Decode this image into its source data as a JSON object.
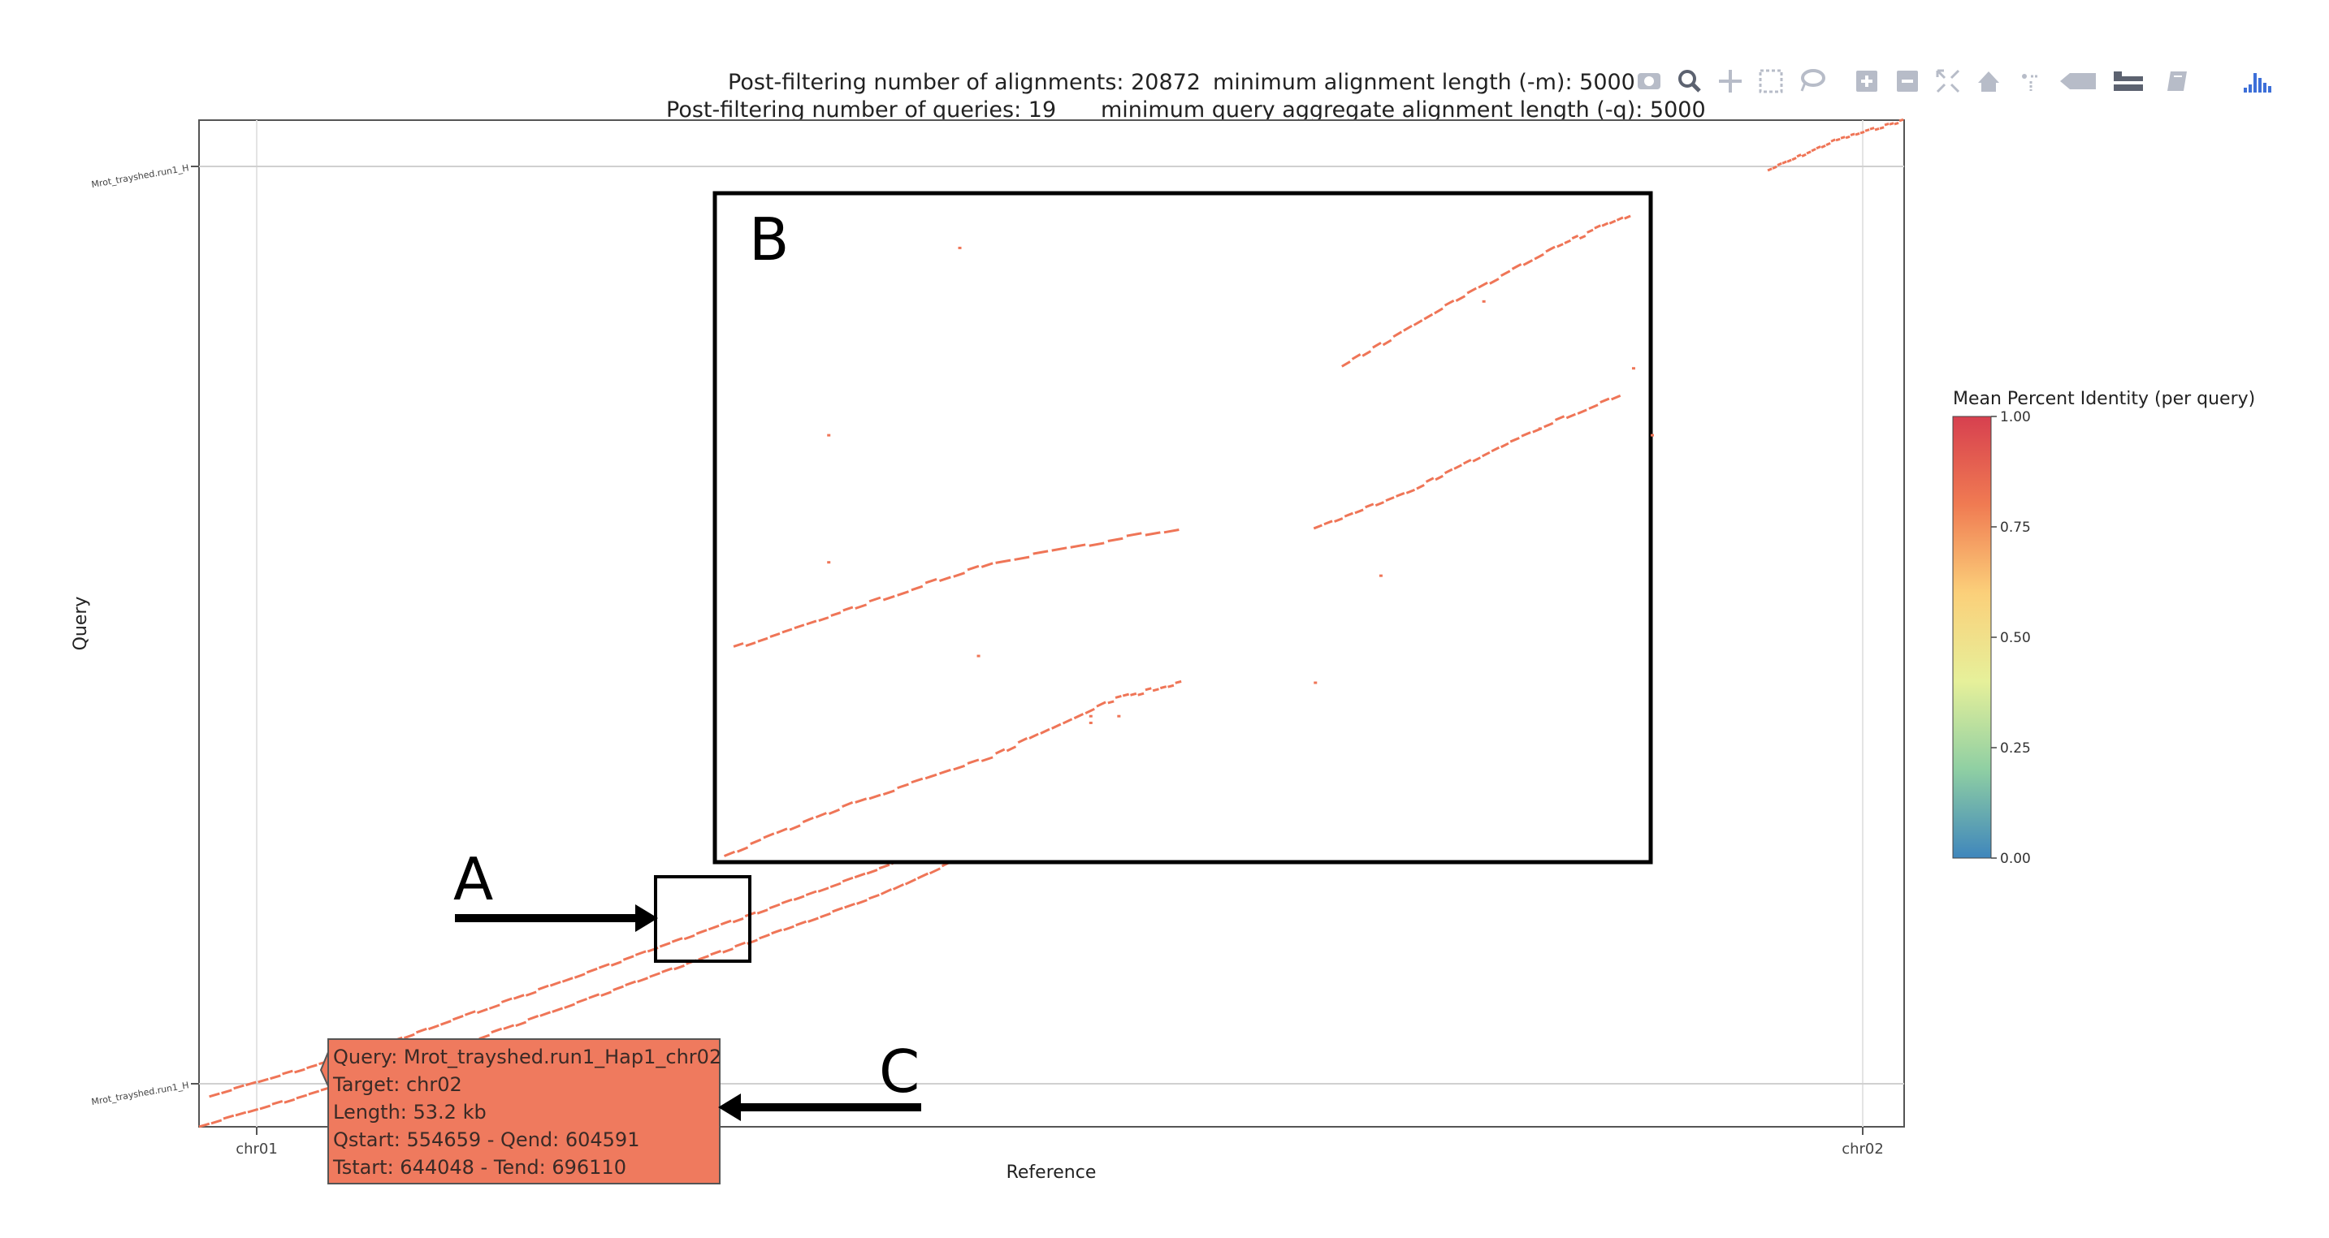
{
  "header": {
    "line1_left": "Post-filtering number of alignments: 20872",
    "line1_right": "minimum alignment length (-m): 5000",
    "line2_left": "Post-filtering number of queries: 19",
    "line2_right": "minimum query aggregate alignment length (-q): 5000"
  },
  "modebar": [
    {
      "name": "camera-icon"
    },
    {
      "name": "zoom-icon"
    },
    {
      "name": "pan-icon"
    },
    {
      "name": "box-select-icon"
    },
    {
      "name": "lasso-select-icon"
    },
    {
      "name": "zoom-in-icon"
    },
    {
      "name": "zoom-out-icon"
    },
    {
      "name": "autoscale-icon"
    },
    {
      "name": "reset-axes-icon"
    },
    {
      "name": "spike-lines-icon"
    },
    {
      "name": "hover-closest-icon"
    },
    {
      "name": "hover-compare-icon"
    },
    {
      "name": "edit-chart-icon"
    },
    {
      "name": "plotly-logo-icon"
    }
  ],
  "chart_data": {
    "type": "scatter",
    "xlabel": "Reference",
    "ylabel": "Query",
    "x_ticks": [
      "chr01",
      "chr02"
    ],
    "y_ticks": [
      "Mrot_trayshed.run1_H",
      "Mrot_trayshed.run1_H"
    ],
    "grid": true,
    "colorbar": {
      "title": "Mean Percent Identity (per query)",
      "ticks": [
        "1.00",
        "0.75",
        "0.50",
        "0.25",
        "0.00"
      ],
      "colors": [
        "#d7404f",
        "#f07b52",
        "#fbd07a",
        "#e6f09a",
        "#8fcfa3",
        "#3f86bc"
      ]
    },
    "line_color": "#ef7557",
    "series_main": [
      [
        0.0,
        0.0
      ],
      [
        0.1,
        0.05
      ],
      [
        0.2,
        0.11
      ],
      [
        0.3,
        0.17
      ],
      [
        0.4,
        0.23
      ],
      [
        0.5,
        0.31
      ]
    ],
    "series_upper": [
      [
        0.92,
        0.95
      ],
      [
        0.96,
        0.98
      ],
      [
        1.0,
        1.0
      ]
    ]
  },
  "annotations": {
    "label_a": "A",
    "label_b": "B",
    "label_c": "C"
  },
  "tooltip": {
    "line1": "Query: Mrot_trayshed.run1_Hap1_chr02",
    "line2": "Target: chr02",
    "line3": "Length: 53.2 kb",
    "line4": "Qstart: 554659 - Qend: 604591",
    "line5": "Tstart: 644048 - Tend: 696110",
    "bg_color": "#ef7a5e"
  }
}
